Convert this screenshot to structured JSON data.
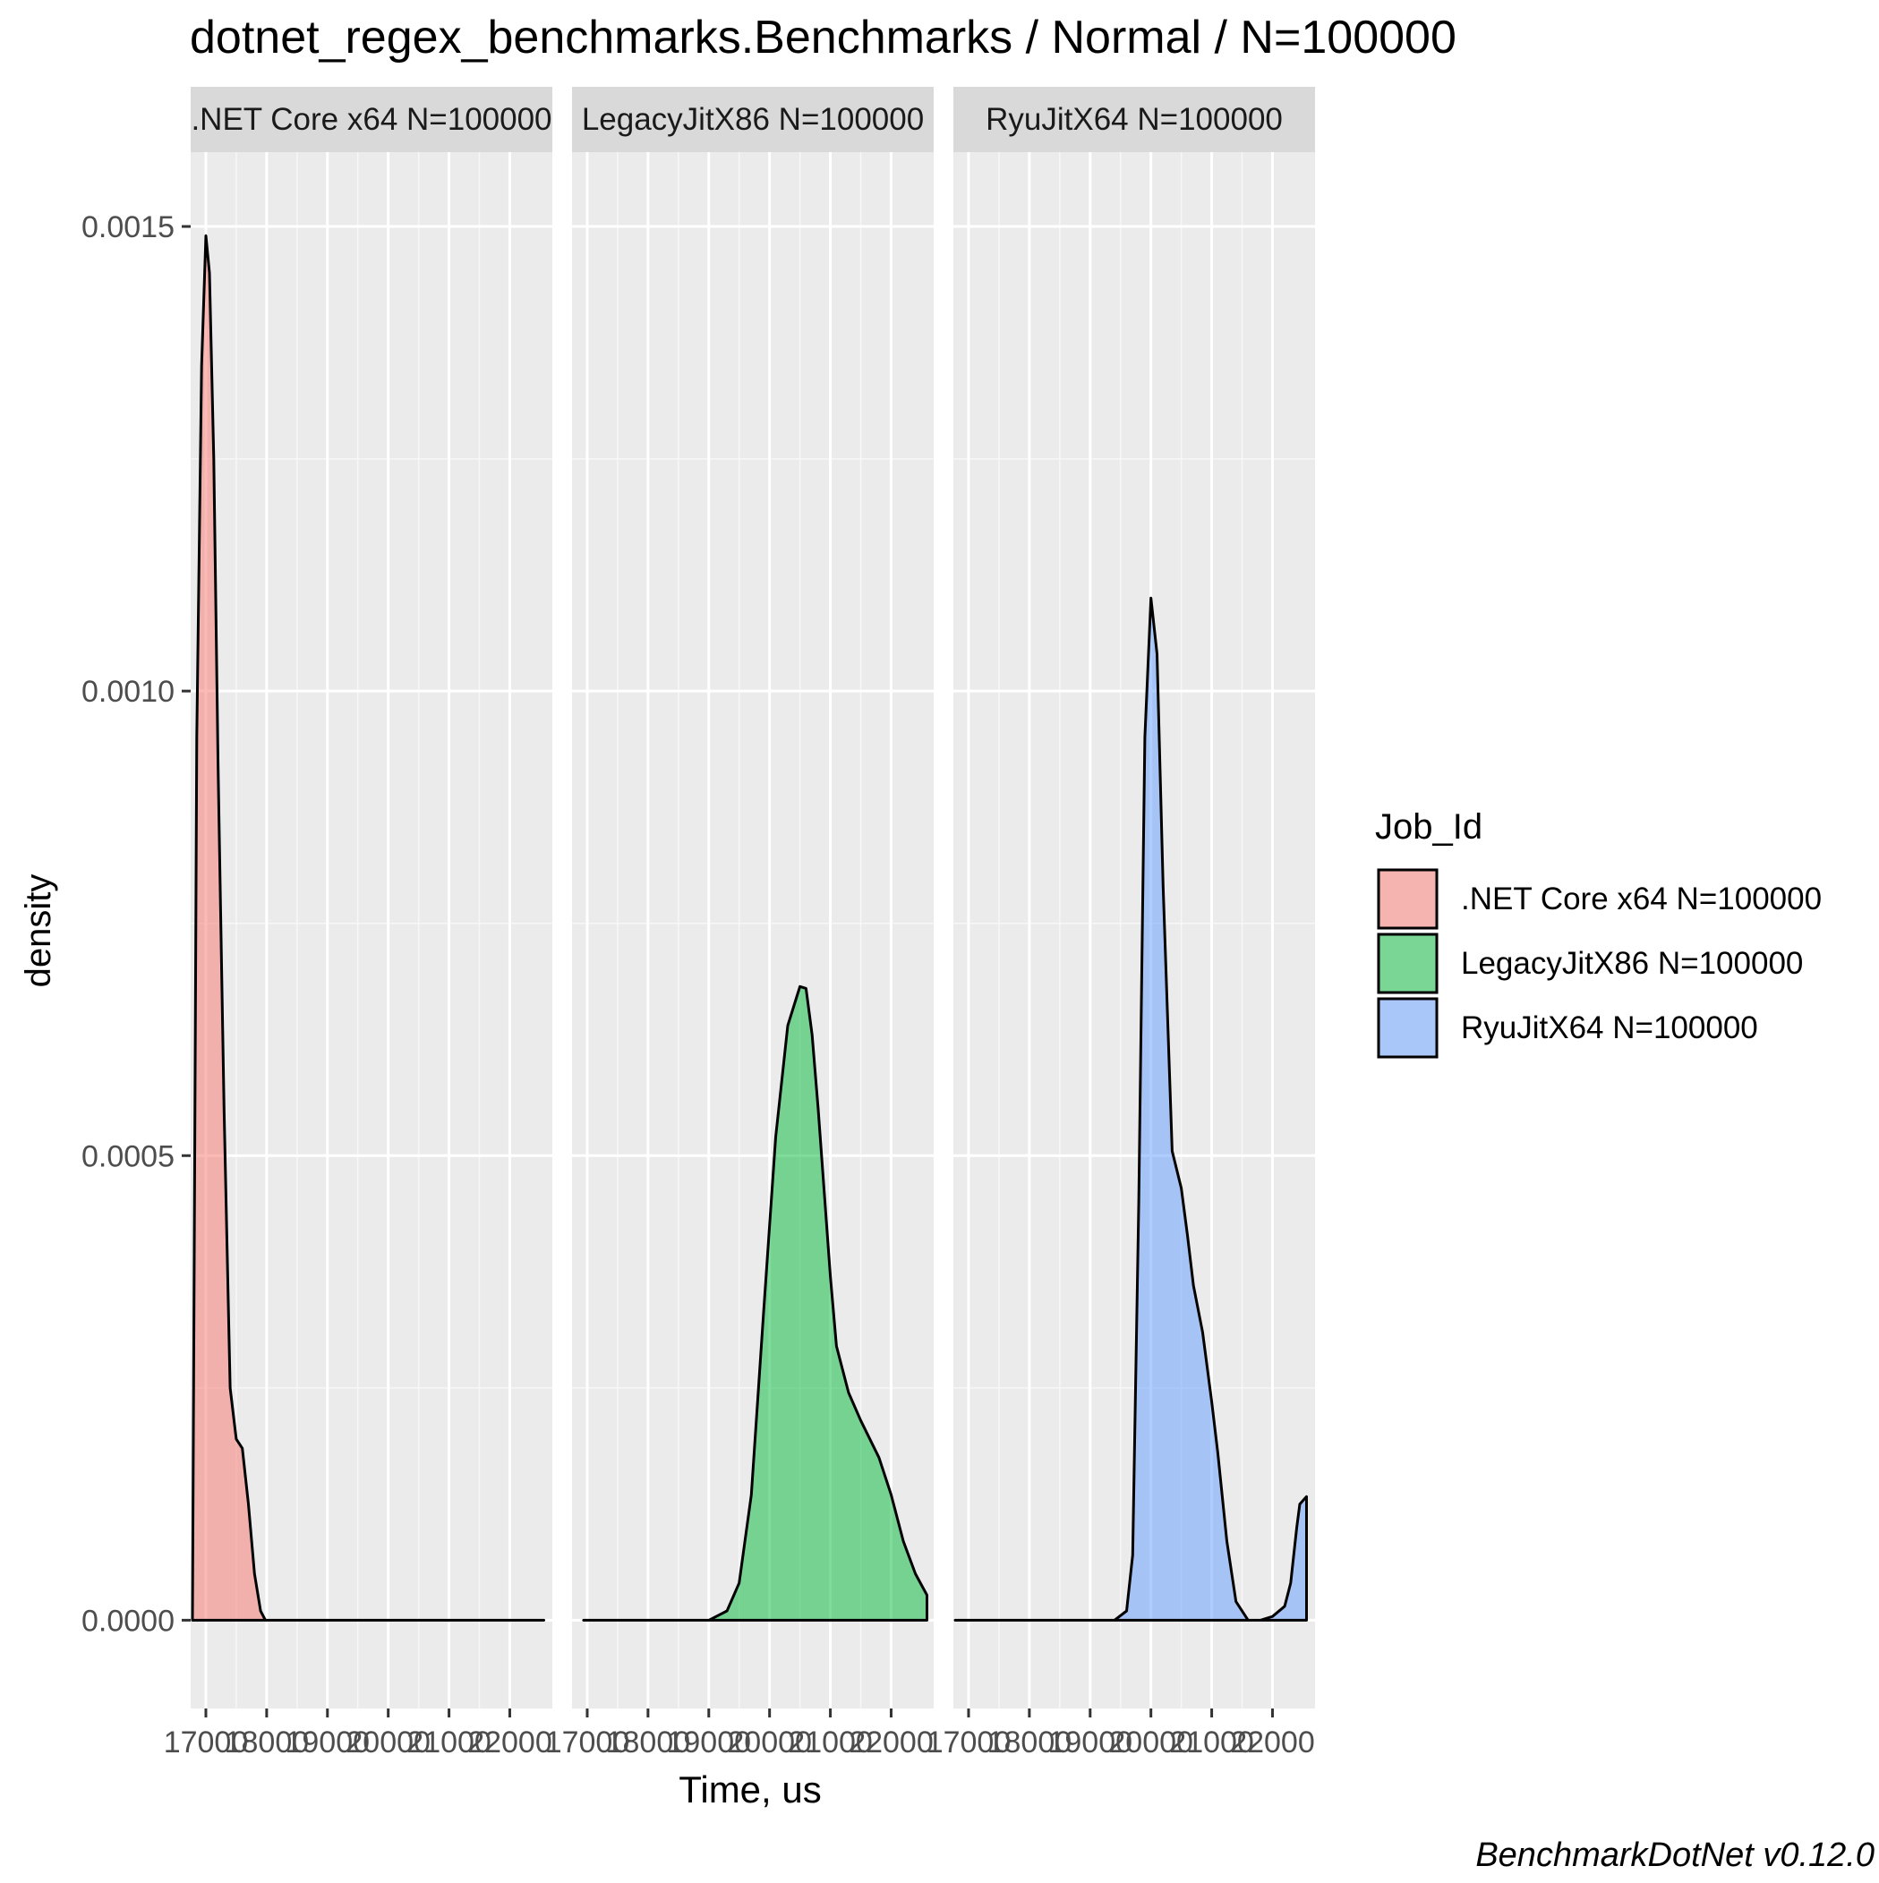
{
  "chart_data": {
    "type": "area",
    "title": "dotnet_regex_benchmarks.Benchmarks / Normal / N=100000",
    "xlabel": "Time, us",
    "ylabel": "density",
    "caption": "BenchmarkDotNet v0.12.0",
    "x_range": [
      16750,
      22700
    ],
    "y_range": [
      -9.5e-05,
      0.00158
    ],
    "x_ticks": [
      17000,
      18000,
      19000,
      20000,
      21000,
      22000
    ],
    "x_tick_labels": [
      "17000",
      "18000",
      "19000",
      "20000",
      "21000",
      "22000"
    ],
    "y_ticks": [
      0,
      0.0005,
      0.001,
      0.0015
    ],
    "y_tick_labels": [
      "0.0000",
      "0.0005",
      "0.0010",
      "0.0015"
    ],
    "grid": true,
    "legend": {
      "title": "Job_Id",
      "position": "right",
      "entries": [
        ".NET Core x64 N=100000",
        "LegacyJitX86 N=100000",
        "RyuJitX64 N=100000"
      ]
    },
    "series": [
      {
        "name": ".NET Core x64 N=100000",
        "facet_label": ".NET Core x64 N=100000",
        "color": "#F8766D",
        "x": [
          16780,
          16850,
          16930,
          17000,
          17060,
          17130,
          17200,
          17300,
          17400,
          17500,
          17600,
          17700,
          17800,
          17900,
          17980,
          18200,
          19000,
          20000,
          21000,
          22000,
          22560
        ],
        "density": [
          0.0,
          0.00095,
          0.00135,
          0.00149,
          0.00145,
          0.00125,
          0.00092,
          0.00055,
          0.00025,
          0.000195,
          0.000185,
          0.000125,
          5e-05,
          1e-05,
          0.0,
          0.0,
          0.0,
          0.0,
          0.0,
          0.0,
          0.0
        ]
      },
      {
        "name": "LegacyJitX86 N=100000",
        "facet_label": "LegacyJitX86 N=100000",
        "color": "#00BA38",
        "x": [
          16940,
          18000,
          19000,
          19300,
          19500,
          19700,
          19900,
          20100,
          20300,
          20500,
          20600,
          20700,
          20800,
          20900,
          21000,
          21100,
          21300,
          21500,
          21800,
          22000,
          22200,
          22400,
          22590
        ],
        "density": [
          0.0,
          0.0,
          0.0,
          1e-05,
          4e-05,
          0.000135,
          0.00033,
          0.00052,
          0.00064,
          0.000682,
          0.00068,
          0.00063,
          0.00055,
          0.00046,
          0.00037,
          0.000295,
          0.000245,
          0.000215,
          0.000175,
          0.000135,
          8.5e-05,
          5e-05,
          2.7e-05
        ]
      },
      {
        "name": "RyuJitX64 N=100000",
        "facet_label": "RyuJitX64 N=100000",
        "color": "#619CFF",
        "x": [
          16780,
          18000,
          19000,
          19400,
          19600,
          19700,
          19800,
          19900,
          20000,
          20100,
          20200,
          20350,
          20500,
          20600,
          20700,
          20850,
          21000,
          21100,
          21250,
          21400,
          21600,
          21800,
          22000,
          22200,
          22300,
          22400,
          22450,
          22560
        ],
        "density": [
          0.0,
          0.0,
          0.0,
          0.0,
          1e-05,
          7e-05,
          0.00045,
          0.00095,
          0.0011,
          0.00104,
          0.00079,
          0.000505,
          0.000465,
          0.000415,
          0.00036,
          0.00031,
          0.000235,
          0.00018,
          8.5e-05,
          2e-05,
          0.0,
          0.0,
          4e-06,
          1.5e-05,
          4e-05,
          0.0001,
          0.000125,
          0.000133
        ]
      }
    ]
  }
}
